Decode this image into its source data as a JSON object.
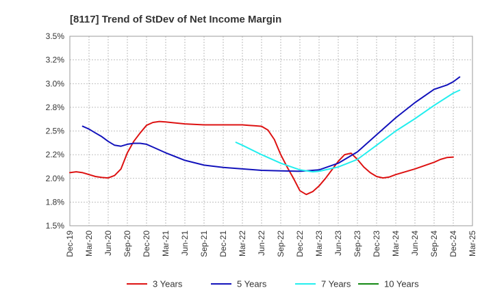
{
  "title": "[8117]  Trend of StDev of Net Income Margin",
  "chart_data": {
    "type": "line",
    "title": "[8117]  Trend of StDev of Net Income Margin",
    "xlabel": "",
    "ylabel": "",
    "x_ticks": [
      "Dec-19",
      "Mar-20",
      "Jun-20",
      "Sep-20",
      "Dec-20",
      "Mar-21",
      "Jun-21",
      "Sep-21",
      "Dec-21",
      "Mar-22",
      "Jun-22",
      "Sep-22",
      "Dec-22",
      "Mar-23",
      "Jun-23",
      "Sep-23",
      "Dec-23",
      "Mar-24",
      "Jun-24",
      "Sep-24",
      "Dec-24",
      "Mar-25"
    ],
    "y_ticks": [
      "1.5%",
      "1.8%",
      "2.0%",
      "2.2%",
      "2.5%",
      "2.8%",
      "3.0%",
      "3.2%",
      "3.5%"
    ],
    "ylim": [
      1.5,
      3.5
    ],
    "grid": true,
    "legend_position": "bottom",
    "series": [
      {
        "name": "3 Years",
        "color": "#dd1111",
        "points": [
          [
            "Dec-19",
            2.06
          ],
          [
            "Jan-20",
            2.07
          ],
          [
            "Feb-20",
            2.06
          ],
          [
            "Mar-20",
            2.04
          ],
          [
            "Apr-20",
            2.02
          ],
          [
            "May-20",
            2.01
          ],
          [
            "Jun-20",
            2.005
          ],
          [
            "Jul-20",
            2.03
          ],
          [
            "Aug-20",
            2.1
          ],
          [
            "Sep-20",
            2.27
          ],
          [
            "Oct-20",
            2.39
          ],
          [
            "Nov-20",
            2.48
          ],
          [
            "Dec-20",
            2.56
          ],
          [
            "Jan-21",
            2.59
          ],
          [
            "Feb-21",
            2.6
          ],
          [
            "Mar-21",
            2.595
          ],
          [
            "Jun-21",
            2.575
          ],
          [
            "Sep-21",
            2.565
          ],
          [
            "Dec-21",
            2.565
          ],
          [
            "Mar-22",
            2.565
          ],
          [
            "Apr-22",
            2.56
          ],
          [
            "May-22",
            2.555
          ],
          [
            "Jun-22",
            2.55
          ],
          [
            "Jul-22",
            2.51
          ],
          [
            "Aug-22",
            2.41
          ],
          [
            "Sep-22",
            2.25
          ],
          [
            "Oct-22",
            2.12
          ],
          [
            "Nov-22",
            2.0
          ],
          [
            "Dec-22",
            1.87
          ],
          [
            "Jan-23",
            1.83
          ],
          [
            "Feb-23",
            1.86
          ],
          [
            "Mar-23",
            1.92
          ],
          [
            "Apr-23",
            2.0
          ],
          [
            "May-23",
            2.09
          ],
          [
            "Jun-23",
            2.18
          ],
          [
            "Jul-23",
            2.25
          ],
          [
            "Aug-23",
            2.265
          ],
          [
            "Sep-23",
            2.2
          ],
          [
            "Oct-23",
            2.12
          ],
          [
            "Nov-23",
            2.06
          ],
          [
            "Dec-23",
            2.02
          ],
          [
            "Jan-24",
            2.005
          ],
          [
            "Feb-24",
            2.015
          ],
          [
            "Mar-24",
            2.04
          ],
          [
            "Jun-24",
            2.1
          ],
          [
            "Sep-24",
            2.17
          ],
          [
            "Oct-24",
            2.2
          ],
          [
            "Nov-24",
            2.22
          ],
          [
            "Dec-24",
            2.225
          ]
        ]
      },
      {
        "name": "5 Years",
        "color": "#1111bb",
        "points": [
          [
            "Feb-20",
            2.55
          ],
          [
            "Mar-20",
            2.52
          ],
          [
            "Apr-20",
            2.48
          ],
          [
            "May-20",
            2.44
          ],
          [
            "Jun-20",
            2.39
          ],
          [
            "Jul-20",
            2.35
          ],
          [
            "Aug-20",
            2.34
          ],
          [
            "Sep-20",
            2.36
          ],
          [
            "Oct-20",
            2.37
          ],
          [
            "Nov-20",
            2.37
          ],
          [
            "Dec-20",
            2.36
          ],
          [
            "Jan-21",
            2.33
          ],
          [
            "Mar-21",
            2.27
          ],
          [
            "Jun-21",
            2.19
          ],
          [
            "Sep-21",
            2.14
          ],
          [
            "Dec-21",
            2.115
          ],
          [
            "Mar-22",
            2.1
          ],
          [
            "Jun-22",
            2.085
          ],
          [
            "Sep-22",
            2.08
          ],
          [
            "Dec-22",
            2.075
          ],
          [
            "Mar-23",
            2.09
          ],
          [
            "Jun-23",
            2.16
          ],
          [
            "Sep-23",
            2.28
          ],
          [
            "Dec-23",
            2.46
          ],
          [
            "Mar-24",
            2.64
          ],
          [
            "Jun-24",
            2.8
          ],
          [
            "Sep-24",
            2.94
          ],
          [
            "Nov-24",
            2.985
          ],
          [
            "Dec-24",
            3.02
          ],
          [
            "Jan-25",
            3.07
          ]
        ]
      },
      {
        "name": "7 Years",
        "color": "#22eeee",
        "points": [
          [
            "Feb-22",
            2.38
          ],
          [
            "Mar-22",
            2.35
          ],
          [
            "Jun-22",
            2.25
          ],
          [
            "Sep-22",
            2.16
          ],
          [
            "Dec-22",
            2.09
          ],
          [
            "Feb-23",
            2.07
          ],
          [
            "Mar-23",
            2.075
          ],
          [
            "Jun-23",
            2.12
          ],
          [
            "Sep-23",
            2.2
          ],
          [
            "Dec-23",
            2.35
          ],
          [
            "Mar-24",
            2.5
          ],
          [
            "Jun-24",
            2.63
          ],
          [
            "Sep-24",
            2.77
          ],
          [
            "Dec-24",
            2.9
          ],
          [
            "Jan-25",
            2.93
          ]
        ]
      },
      {
        "name": "10 Years",
        "color": "#118811",
        "points": []
      }
    ]
  }
}
